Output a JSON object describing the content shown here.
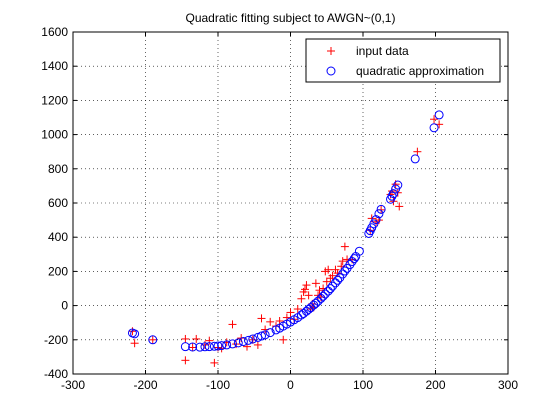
{
  "chart_data": {
    "type": "scatter",
    "title": "Quadratic fitting subject to AWGN~(0,1)",
    "xlabel": "",
    "ylabel": "",
    "xlim": [
      -300,
      300
    ],
    "ylim": [
      -400,
      1600
    ],
    "xticks": [
      -300,
      -200,
      -100,
      0,
      100,
      200,
      300
    ],
    "yticks": [
      -400,
      -200,
      0,
      200,
      400,
      600,
      800,
      1000,
      1200,
      1400,
      1600
    ],
    "grid": true,
    "legend_position": "top-right",
    "series": [
      {
        "name": "input data",
        "marker": "plus",
        "color": "#ff0000",
        "points": [
          [
            -218,
            -150
          ],
          [
            -215,
            -220
          ],
          [
            -190,
            -200
          ],
          [
            -145,
            -320
          ],
          [
            -145,
            -195
          ],
          [
            -135,
            -245
          ],
          [
            -130,
            -195
          ],
          [
            -118,
            -230
          ],
          [
            -112,
            -205
          ],
          [
            -105,
            -335
          ],
          [
            -100,
            -245
          ],
          [
            -95,
            -250
          ],
          [
            -88,
            -215
          ],
          [
            -80,
            -110
          ],
          [
            -75,
            -225
          ],
          [
            -68,
            -190
          ],
          [
            -60,
            -240
          ],
          [
            -52,
            -200
          ],
          [
            -45,
            -230
          ],
          [
            -40,
            -75
          ],
          [
            -35,
            -140
          ],
          [
            -28,
            -95
          ],
          [
            -20,
            -120
          ],
          [
            -15,
            -90
          ],
          [
            -10,
            -200
          ],
          [
            -5,
            -70
          ],
          [
            0,
            -40
          ],
          [
            5,
            -80
          ],
          [
            10,
            -20
          ],
          [
            15,
            40
          ],
          [
            18,
            80
          ],
          [
            20,
            95
          ],
          [
            22,
            120
          ],
          [
            25,
            60
          ],
          [
            28,
            -20
          ],
          [
            30,
            10
          ],
          [
            32,
            -10
          ],
          [
            35,
            130
          ],
          [
            38,
            60
          ],
          [
            40,
            90
          ],
          [
            42,
            50
          ],
          [
            45,
            100
          ],
          [
            48,
            200
          ],
          [
            50,
            140
          ],
          [
            52,
            210
          ],
          [
            55,
            160
          ],
          [
            58,
            175
          ],
          [
            62,
            210
          ],
          [
            65,
            190
          ],
          [
            70,
            230
          ],
          [
            72,
            260
          ],
          [
            75,
            345
          ],
          [
            78,
            270
          ],
          [
            85,
            270
          ],
          [
            110,
            440
          ],
          [
            112,
            510
          ],
          [
            118,
            490
          ],
          [
            122,
            500
          ],
          [
            125,
            560
          ],
          [
            138,
            650
          ],
          [
            140,
            670
          ],
          [
            142,
            610
          ],
          [
            145,
            710
          ],
          [
            148,
            660
          ],
          [
            150,
            580
          ],
          [
            175,
            900
          ],
          [
            198,
            1090
          ],
          [
            205,
            1060
          ]
        ]
      },
      {
        "name": "quadratic approximation",
        "marker": "circle",
        "color": "#0000ff",
        "points": [
          [
            -218,
            -160
          ],
          [
            -215,
            -165
          ],
          [
            -190,
            -200
          ],
          [
            -145,
            -240
          ],
          [
            -135,
            -242
          ],
          [
            -125,
            -243
          ],
          [
            -118,
            -241
          ],
          [
            -112,
            -240
          ],
          [
            -105,
            -238
          ],
          [
            -100,
            -236
          ],
          [
            -95,
            -234
          ],
          [
            -88,
            -230
          ],
          [
            -80,
            -224
          ],
          [
            -72,
            -218
          ],
          [
            -65,
            -210
          ],
          [
            -58,
            -203
          ],
          [
            -52,
            -195
          ],
          [
            -45,
            -186
          ],
          [
            -40,
            -178
          ],
          [
            -35,
            -171
          ],
          [
            -28,
            -158
          ],
          [
            -20,
            -142
          ],
          [
            -15,
            -132
          ],
          [
            -10,
            -120
          ],
          [
            -5,
            -108
          ],
          [
            0,
            -96
          ],
          [
            5,
            -83
          ],
          [
            10,
            -70
          ],
          [
            15,
            -55
          ],
          [
            18,
            -46
          ],
          [
            22,
            -33
          ],
          [
            25,
            -22
          ],
          [
            28,
            -12
          ],
          [
            32,
            3
          ],
          [
            35,
            14
          ],
          [
            38,
            26
          ],
          [
            42,
            42
          ],
          [
            45,
            55
          ],
          [
            48,
            68
          ],
          [
            52,
            85
          ],
          [
            55,
            99
          ],
          [
            58,
            114
          ],
          [
            62,
            133
          ],
          [
            65,
            148
          ],
          [
            68,
            163
          ],
          [
            72,
            185
          ],
          [
            75,
            202
          ],
          [
            78,
            218
          ],
          [
            82,
            240
          ],
          [
            85,
            258
          ],
          [
            88,
            275
          ],
          [
            90,
            287
          ],
          [
            95,
            318
          ],
          [
            108,
            422
          ],
          [
            110,
            438
          ],
          [
            112,
            455
          ],
          [
            115,
            478
          ],
          [
            118,
            503
          ],
          [
            122,
            537
          ],
          [
            125,
            563
          ],
          [
            138,
            622
          ],
          [
            140,
            640
          ],
          [
            142,
            655
          ],
          [
            145,
            682
          ],
          [
            148,
            705
          ],
          [
            172,
            858
          ],
          [
            198,
            1040
          ],
          [
            205,
            1115
          ]
        ]
      }
    ]
  }
}
